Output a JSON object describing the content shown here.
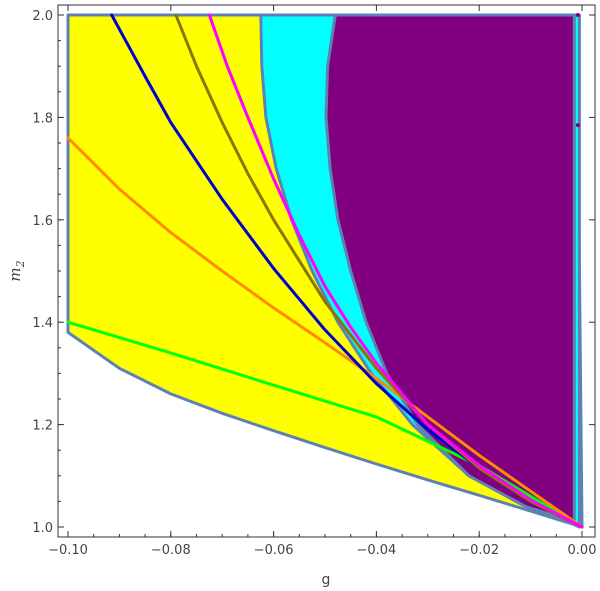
{
  "chart_data": {
    "type": "area",
    "title": "",
    "xlabel": "g",
    "ylabel_base": "m",
    "ylabel_sub": "2",
    "xlim": [
      -0.1,
      0.0
    ],
    "ylim": [
      1.0,
      2.0
    ],
    "xticks": [
      -0.1,
      -0.08,
      -0.06,
      -0.04,
      -0.02,
      0.0
    ],
    "xtick_labels": [
      "−0.10",
      "−0.08",
      "−0.06",
      "−0.04",
      "−0.02",
      "0.00"
    ],
    "yticks": [
      1.0,
      1.2,
      1.4,
      1.6,
      1.8,
      2.0
    ],
    "ytick_labels": [
      "1.0",
      "1.2",
      "1.4",
      "1.6",
      "1.8",
      "2.0"
    ],
    "grid": false,
    "colors": {
      "yellow_region": "#ffff00",
      "cyan_region": "#00ffff",
      "purple_region": "#800080",
      "boundary": "#5e81b5",
      "frame": "#333333"
    },
    "regions": [
      {
        "color": "#ffff00",
        "boundary": [
          [
            -0.1,
            1.38
          ],
          [
            -0.09,
            1.31
          ],
          [
            -0.08,
            1.26
          ],
          [
            -0.07,
            1.222
          ],
          [
            -0.06,
            1.188
          ],
          [
            -0.05,
            1.155
          ],
          [
            -0.04,
            1.123
          ],
          [
            -0.03,
            1.092
          ],
          [
            -0.02,
            1.062
          ],
          [
            -0.01,
            1.031
          ],
          [
            0.0,
            1.0
          ],
          [
            -0.001,
            2.0
          ],
          [
            -0.1,
            2.0
          ]
        ]
      },
      {
        "color": "#00ffff",
        "boundary": [
          [
            -0.0625,
            2.0
          ],
          [
            -0.0623,
            1.9
          ],
          [
            -0.0615,
            1.8
          ],
          [
            -0.0595,
            1.7
          ],
          [
            -0.0565,
            1.6
          ],
          [
            -0.0525,
            1.5
          ],
          [
            -0.0475,
            1.4
          ],
          [
            -0.041,
            1.3
          ],
          [
            -0.033,
            1.2
          ],
          [
            -0.022,
            1.1
          ],
          [
            -0.0005,
            1.0
          ],
          [
            -0.0005,
            2.0
          ]
        ]
      },
      {
        "color": "#800080",
        "boundary": [
          [
            -0.048,
            2.0
          ],
          [
            -0.0495,
            1.9
          ],
          [
            -0.0498,
            1.8
          ],
          [
            -0.049,
            1.7
          ],
          [
            -0.0475,
            1.6
          ],
          [
            -0.045,
            1.5
          ],
          [
            -0.042,
            1.4
          ],
          [
            -0.038,
            1.3
          ],
          [
            -0.032,
            1.2
          ],
          [
            -0.022,
            1.1
          ],
          [
            -0.011,
            1.04
          ],
          [
            -0.0015,
            1.01
          ],
          [
            -0.0015,
            2.0
          ]
        ]
      }
    ],
    "series": [
      {
        "color": "#00ff00",
        "points": [
          [
            -0.1,
            1.4
          ],
          [
            -0.08,
            1.34
          ],
          [
            -0.06,
            1.277
          ],
          [
            -0.04,
            1.215
          ],
          [
            -0.02,
            1.12
          ],
          [
            0.0,
            1.0
          ]
        ]
      },
      {
        "color": "#ff8c00",
        "points": [
          [
            -0.1,
            1.76
          ],
          [
            -0.09,
            1.66
          ],
          [
            -0.08,
            1.575
          ],
          [
            -0.07,
            1.5
          ],
          [
            -0.06,
            1.428
          ],
          [
            -0.05,
            1.36
          ],
          [
            -0.04,
            1.29
          ],
          [
            -0.03,
            1.215
          ],
          [
            -0.02,
            1.14
          ],
          [
            -0.01,
            1.07
          ],
          [
            0.0,
            1.0
          ]
        ]
      },
      {
        "color": "#0000cd",
        "points": [
          [
            -0.0915,
            2.0
          ],
          [
            -0.085,
            1.88
          ],
          [
            -0.08,
            1.79
          ],
          [
            -0.07,
            1.64
          ],
          [
            -0.06,
            1.505
          ],
          [
            -0.05,
            1.385
          ],
          [
            -0.04,
            1.28
          ],
          [
            -0.03,
            1.19
          ],
          [
            -0.02,
            1.115
          ],
          [
            -0.01,
            1.05
          ],
          [
            0.0,
            1.0
          ]
        ]
      },
      {
        "color": "#8b7500",
        "points": [
          [
            -0.079,
            2.0
          ],
          [
            -0.075,
            1.9
          ],
          [
            -0.07,
            1.79
          ],
          [
            -0.065,
            1.69
          ],
          [
            -0.06,
            1.6
          ],
          [
            -0.055,
            1.52
          ],
          [
            -0.05,
            1.44
          ],
          [
            -0.04,
            1.31
          ],
          [
            -0.03,
            1.2
          ],
          [
            -0.02,
            1.115
          ],
          [
            -0.01,
            1.05
          ],
          [
            0.0,
            1.0
          ]
        ]
      },
      {
        "color": "#ff00ff",
        "points": [
          [
            -0.0725,
            2.0
          ],
          [
            -0.069,
            1.9
          ],
          [
            -0.065,
            1.8
          ],
          [
            -0.06,
            1.68
          ],
          [
            -0.055,
            1.57
          ],
          [
            -0.05,
            1.47
          ],
          [
            -0.045,
            1.39
          ],
          [
            -0.04,
            1.32
          ],
          [
            -0.03,
            1.2
          ],
          [
            -0.02,
            1.12
          ],
          [
            -0.01,
            1.053
          ],
          [
            0.0,
            1.0
          ]
        ]
      }
    ],
    "markers": [
      {
        "x": -0.0008,
        "y": 2.0,
        "color": "#800080"
      },
      {
        "x": -0.0008,
        "y": 1.785,
        "color": "#800080"
      }
    ]
  }
}
